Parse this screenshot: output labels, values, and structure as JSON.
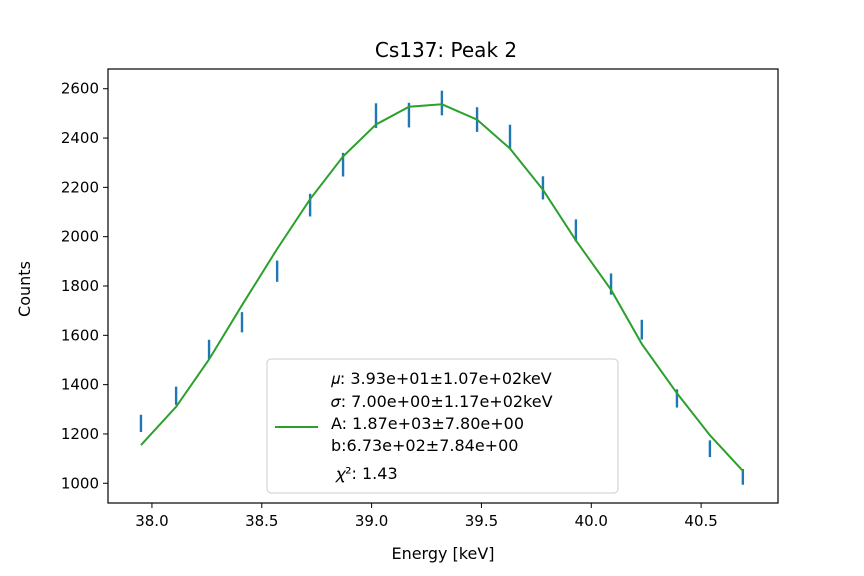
{
  "chart_data": {
    "type": "line",
    "title": "Cs137: Peak 2",
    "xlabel": "Energy [keV]",
    "ylabel": "Counts",
    "xlim": [
      37.8,
      40.85
    ],
    "ylim": [
      920,
      2680
    ],
    "xticks": [
      38.0,
      38.5,
      39.0,
      39.5,
      40.0,
      40.5
    ],
    "xtick_labels": [
      "38.0",
      "38.5",
      "39.0",
      "39.5",
      "40.0",
      "40.5"
    ],
    "yticks": [
      1000,
      1200,
      1400,
      1600,
      1800,
      2000,
      2200,
      2400,
      2600
    ],
    "ytick_labels": [
      "1000",
      "1200",
      "1400",
      "1600",
      "1800",
      "2000",
      "2200",
      "2400",
      "2600"
    ],
    "grid": false,
    "legend_placement": "lower-center",
    "series": [
      {
        "kind": "errorbar",
        "color": "#1f77b4",
        "x": [
          37.95,
          38.11,
          38.26,
          38.41,
          38.57,
          38.72,
          38.87,
          39.02,
          39.17,
          39.32,
          39.48,
          39.63,
          39.78,
          39.93,
          40.09,
          40.23,
          40.39,
          40.54,
          40.69
        ],
        "y": [
          1243,
          1355,
          1543,
          1653,
          1860,
          2128,
          2292,
          2491,
          2493,
          2542,
          2475,
          2405,
          2198,
          2025,
          1808,
          1623,
          1344,
          1140,
          1026
        ],
        "yerr": [
          35,
          37,
          39,
          41,
          43,
          46,
          48,
          50,
          50,
          50,
          50,
          49,
          47,
          45,
          43,
          40,
          37,
          34,
          32
        ]
      },
      {
        "kind": "fit",
        "color": "#2ca02c",
        "x": [
          37.95,
          38.11,
          38.26,
          38.41,
          38.57,
          38.72,
          38.87,
          39.02,
          39.17,
          39.32,
          39.48,
          39.63,
          39.78,
          39.93,
          40.09,
          40.23,
          40.39,
          40.54,
          40.69
        ],
        "y": [
          1155,
          1310,
          1502,
          1722,
          1950,
          2152,
          2325,
          2455,
          2527,
          2537,
          2475,
          2357,
          2190,
          1985,
          1785,
          1565,
          1365,
          1195,
          1050
        ]
      }
    ],
    "legend": {
      "lines": [
        "𝜇: 3.93e+01±1.07e+02keV",
        "𝜎: 7.00e+00±1.17e+02keV",
        "A: 1.87e+03±7.80e+00",
        "b:6.73e+02±7.84e+00",
        "𝜒²: 1.43"
      ]
    }
  }
}
